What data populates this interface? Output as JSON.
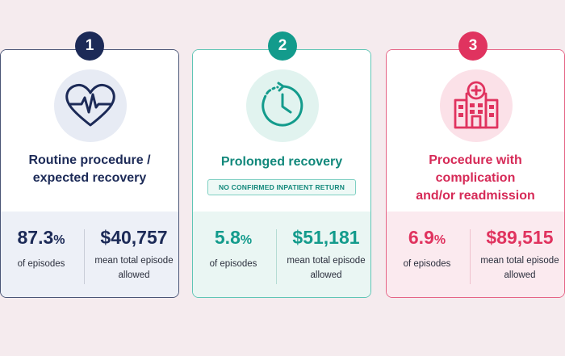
{
  "colors": {
    "navy": "#1c2a57",
    "teal": "#139b8c",
    "pink": "#e0335f",
    "background": "#f5ebee"
  },
  "cards": [
    {
      "number": "1",
      "icon": "heartbeat-icon",
      "title_line1": "Routine procedure /",
      "title_line2": "expected recovery",
      "note": "",
      "stat_percent": "87.3",
      "stat_percent_suffix": "%",
      "stat_percent_label": "of episodes",
      "stat_amount": "$40,757",
      "stat_amount_label_line1": "mean total episode",
      "stat_amount_label_line2": "allowed"
    },
    {
      "number": "2",
      "icon": "clock-icon",
      "title_line1": "Prolonged recovery",
      "title_line2": "",
      "note": "NO CONFIRMED INPATIENT RETURN",
      "stat_percent": "5.8",
      "stat_percent_suffix": "%",
      "stat_percent_label": "of episodes",
      "stat_amount": "$51,181",
      "stat_amount_label_line1": "mean total episode",
      "stat_amount_label_line2": "allowed"
    },
    {
      "number": "3",
      "icon": "hospital-icon",
      "title_line1": "Procedure with complication",
      "title_line2": "and/or readmission",
      "note": "",
      "stat_percent": "6.9",
      "stat_percent_suffix": "%",
      "stat_percent_label": "of episodes",
      "stat_amount": "$89,515",
      "stat_amount_label_line1": "mean total episode",
      "stat_amount_label_line2": "allowed"
    }
  ]
}
